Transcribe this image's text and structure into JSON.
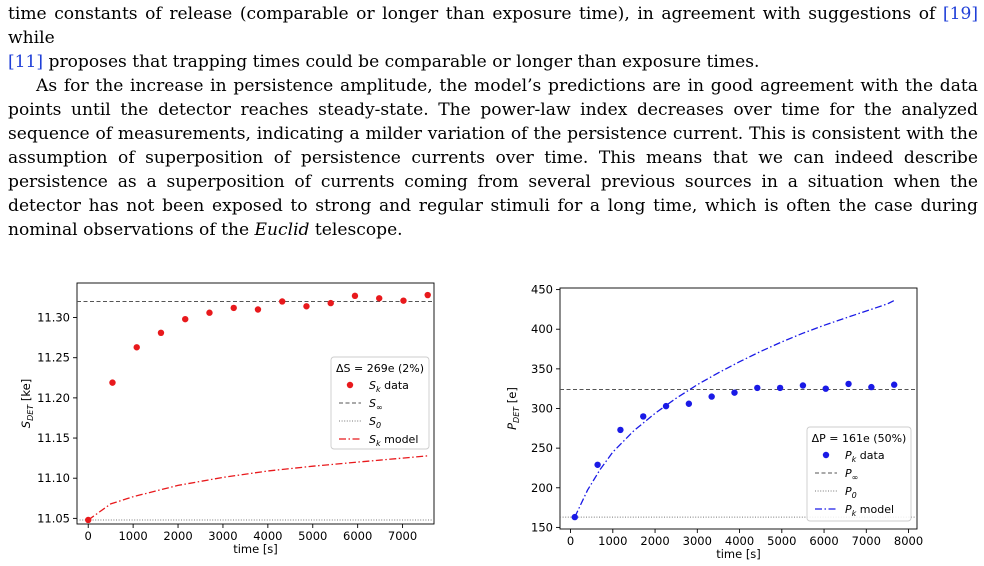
{
  "paper": {
    "p1": {
      "l1_a": "time constants of release (comparable or longer than exposure time), in agreement with suggestions of ",
      "l1_cite": "[19]",
      "l1_b": " while",
      "l2_cite": "[11]",
      "l2_b": " proposes that trapping times could be comparable or longer than exposure times."
    },
    "p2": {
      "text": "As for the increase in persistence amplitude, the model’s predictions are in good agreement with the data points until the detector reaches steady-state. The power-law index decreases over time for the analyzed sequence of measurements, indicating a milder variation of the persistence current. This is consistent with the assumption of superposition of persistence currents over time. This means that we can indeed describe persistence as a superposition of currents coming from several previous sources in a situation when the detector has not been exposed to strong and regular stimuli for a long time, which is often the case during nominal observations of the",
      "italic": "Euclid",
      "tail": " telescope."
    }
  },
  "chart_data": [
    {
      "type": "scatter",
      "xlabel": "time [s]",
      "ylabel": "S",
      "ylabel_sub": "DET",
      "ylabel_unit": " [ke]",
      "xlim": [
        -250,
        7700
      ],
      "ylim": [
        11.043,
        11.343
      ],
      "xticks": [
        0,
        1000,
        2000,
        3000,
        4000,
        5000,
        6000,
        7000
      ],
      "yticks": [
        11.05,
        11.1,
        11.15,
        11.2,
        11.25,
        11.3
      ],
      "ytick_labels": [
        "11.05",
        "11.10",
        "11.15",
        "11.20",
        "11.25",
        "11.30"
      ],
      "legend": {
        "title": "ΔS = 269e (2%)",
        "items": [
          "S",
          "S",
          "S",
          "S"
        ],
        "subs": [
          "k",
          "∞",
          "0",
          "k"
        ],
        "suffix": [
          " data",
          "",
          "",
          " model"
        ]
      },
      "data_x": [
        0,
        540,
        1080,
        1620,
        2160,
        2700,
        3240,
        3780,
        4320,
        4860,
        5400,
        5940,
        6480,
        7020,
        7560
      ],
      "data_y": [
        11.048,
        11.219,
        11.263,
        11.281,
        11.298,
        11.306,
        11.312,
        11.31,
        11.32,
        11.314,
        11.318,
        11.327,
        11.324,
        11.321,
        11.328
      ],
      "s_inf": 11.32,
      "s_0": 11.048,
      "model_x": [
        0,
        500,
        1000,
        2000,
        3000,
        4000,
        5000,
        6000,
        7000,
        7600
      ],
      "model_y": [
        11.048,
        11.068,
        11.077,
        11.091,
        11.101,
        11.109,
        11.115,
        11.12,
        11.125,
        11.128
      ]
    },
    {
      "type": "scatter",
      "xlabel": "time [s]",
      "ylabel": "P",
      "ylabel_sub": "DET",
      "ylabel_unit": " [e]",
      "xlim": [
        -250,
        8200
      ],
      "ylim": [
        148,
        452
      ],
      "xticks": [
        0,
        1000,
        2000,
        3000,
        4000,
        5000,
        6000,
        7000,
        8000
      ],
      "yticks": [
        150,
        200,
        250,
        300,
        350,
        400,
        450
      ],
      "ytick_labels": [
        "150",
        "200",
        "250",
        "300",
        "350",
        "400",
        "450"
      ],
      "legend": {
        "title": "ΔP = 161e (50%)",
        "items": [
          "P",
          "P",
          "P",
          "P"
        ],
        "subs": [
          "k",
          "∞",
          "0",
          "k"
        ],
        "suffix": [
          " data",
          "",
          "",
          " model"
        ]
      },
      "data_x": [
        100,
        640,
        1180,
        1720,
        2260,
        2800,
        3340,
        3880,
        4420,
        4960,
        5500,
        6040,
        6580,
        7120,
        7660
      ],
      "data_y": [
        163,
        229,
        273,
        290,
        303,
        306,
        315,
        320,
        326,
        326,
        329,
        325,
        331,
        327,
        330
      ],
      "p_inf": 324,
      "p_0": 163,
      "model_x": [
        100,
        400,
        700,
        1000,
        1500,
        2000,
        2500,
        3000,
        3500,
        4000,
        4500,
        5000,
        5500,
        6000,
        6500,
        7000,
        7500,
        7650
      ],
      "model_y": [
        163,
        197,
        223,
        245,
        272,
        294,
        313,
        330,
        345,
        359,
        372,
        384,
        395,
        405,
        414,
        423,
        432,
        436
      ]
    }
  ]
}
